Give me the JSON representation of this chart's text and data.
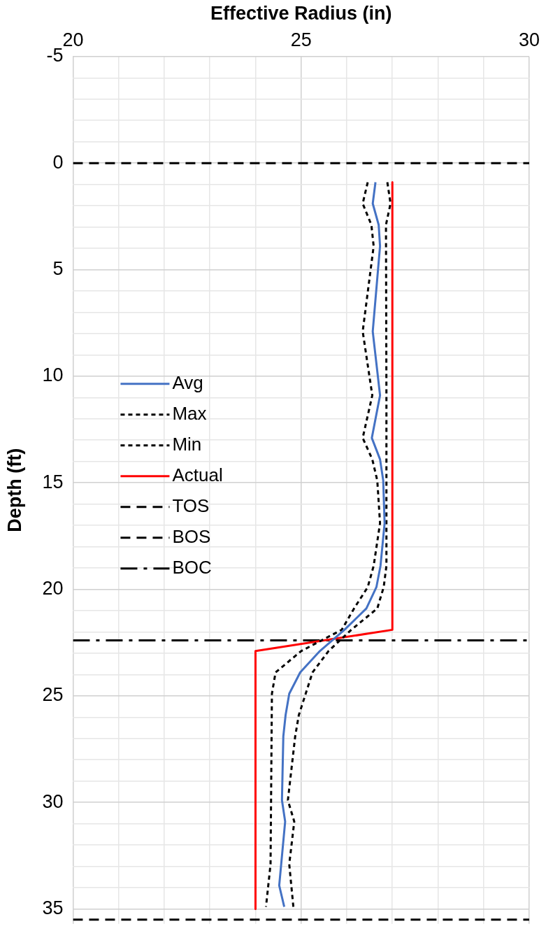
{
  "chart_data": {
    "type": "line",
    "xlabel": "Effective Radius (in)",
    "ylabel": "Depth (ft)",
    "xlim": [
      20,
      30
    ],
    "xticks": [
      20,
      {
        "value": 21,
        "label": null
      },
      {
        "value": 22,
        "label": null
      },
      {
        "value": 23,
        "label": null
      },
      {
        "value": 24,
        "label": null
      },
      25,
      {
        "value": 26,
        "label": null
      },
      {
        "value": 27,
        "label": null
      },
      {
        "value": 28,
        "label": null
      },
      {
        "value": 29,
        "label": null
      },
      30
    ],
    "ylim": [
      35.7,
      -5
    ],
    "yticks": [
      -5,
      {
        "value": -4,
        "label": null
      },
      {
        "value": -3,
        "label": null
      },
      {
        "value": -2,
        "label": null
      },
      {
        "value": -1,
        "label": null
      },
      0,
      {
        "value": 1,
        "label": null
      },
      {
        "value": 2,
        "label": null
      },
      {
        "value": 3,
        "label": null
      },
      {
        "value": 4,
        "label": null
      },
      5,
      {
        "value": 6,
        "label": null
      },
      {
        "value": 7,
        "label": null
      },
      {
        "value": 8,
        "label": null
      },
      {
        "value": 9,
        "label": null
      },
      10,
      {
        "value": 11,
        "label": null
      },
      {
        "value": 12,
        "label": null
      },
      {
        "value": 13,
        "label": null
      },
      {
        "value": 14,
        "label": null
      },
      15,
      {
        "value": 16,
        "label": null
      },
      {
        "value": 17,
        "label": null
      },
      {
        "value": 18,
        "label": null
      },
      {
        "value": 19,
        "label": null
      },
      20,
      {
        "value": 21,
        "label": null
      },
      {
        "value": 22,
        "label": null
      },
      {
        "value": 23,
        "label": null
      },
      {
        "value": 24,
        "label": null
      },
      25,
      {
        "value": 26,
        "label": null
      },
      {
        "value": 27,
        "label": null
      },
      {
        "value": 28,
        "label": null
      },
      {
        "value": 29,
        "label": null
      },
      30,
      {
        "value": 31,
        "label": null
      },
      {
        "value": 32,
        "label": null
      },
      {
        "value": 33,
        "label": null
      },
      {
        "value": 34,
        "label": null
      },
      35
    ],
    "grid": true,
    "legend": "left",
    "marker": "none",
    "series": [
      {
        "name": "Avg",
        "color": "#4472c4",
        "line_style": "solid",
        "x": [
          26.63,
          26.57,
          26.7,
          26.73,
          26.57,
          26.73,
          26.55,
          26.73,
          26.8,
          26.83,
          26.74,
          26.65,
          26.43,
          25.95,
          25.41,
          24.98,
          24.74,
          24.66,
          24.61,
          24.58,
          24.65,
          24.52,
          24.63
        ],
        "values": [
          0.9,
          1.9,
          2.9,
          3.9,
          7.9,
          10.9,
          12.9,
          13.9,
          14.9,
          16.9,
          18.9,
          19.9,
          20.9,
          21.9,
          22.9,
          23.9,
          24.9,
          25.9,
          26.9,
          29.9,
          30.9,
          33.9,
          34.9
        ]
      },
      {
        "name": "Max",
        "color": "#000000",
        "line_style": "dotted",
        "x": [
          26.89,
          26.96,
          26.86,
          26.87,
          26.87,
          26.81,
          26.67,
          26.1,
          25.6,
          25.25,
          25.1,
          24.95,
          24.87,
          24.71,
          24.85,
          24.74,
          24.83
        ],
        "values": [
          0.9,
          1.9,
          2.9,
          10.9,
          18.9,
          19.9,
          20.9,
          21.9,
          22.9,
          23.9,
          24.9,
          25.9,
          26.9,
          29.9,
          30.9,
          32.9,
          34.9
        ]
      },
      {
        "name": "Min",
        "color": "#000000",
        "line_style": "dotted",
        "x": [
          26.46,
          26.35,
          26.54,
          26.59,
          26.35,
          26.56,
          26.35,
          26.56,
          26.67,
          26.73,
          26.59,
          26.46,
          26.16,
          25.89,
          25.0,
          24.44,
          24.36,
          24.33,
          24.23
        ],
        "values": [
          0.9,
          1.9,
          2.9,
          3.9,
          7.9,
          10.9,
          12.9,
          13.9,
          14.9,
          16.9,
          18.9,
          19.9,
          20.9,
          21.9,
          22.9,
          23.9,
          24.9,
          32.9,
          34.9
        ]
      },
      {
        "name": "Actual",
        "color": "#ff0000",
        "line_style": "solid",
        "x": [
          27.0,
          27.0,
          24.0,
          24.0
        ],
        "values": [
          0.9,
          21.9,
          22.9,
          35.0
        ]
      },
      {
        "name": "TOS",
        "color": "#000000",
        "line_style": "dashed",
        "x": [
          20,
          30
        ],
        "values": [
          0,
          0
        ]
      },
      {
        "name": "BOS",
        "color": "#000000",
        "line_style": "dashed",
        "x": [
          20,
          30
        ],
        "values": [
          35.5,
          35.5
        ]
      },
      {
        "name": "BOC",
        "color": "#000000",
        "line_style": "dashdot",
        "x": [
          20,
          30
        ],
        "values": [
          22.4,
          22.4
        ]
      }
    ]
  }
}
